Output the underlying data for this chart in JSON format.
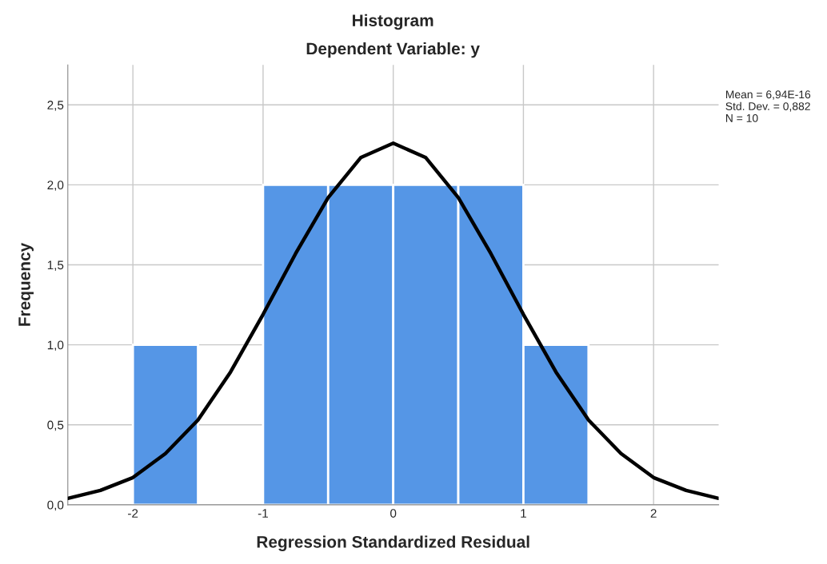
{
  "chart_data": {
    "type": "histogram",
    "title": "Histogram",
    "subtitle": "Dependent Variable: y",
    "xlabel": "Regression Standardized Residual",
    "ylabel": "Frequency",
    "bins": [
      -2,
      -1.5,
      -1,
      -0.5,
      0,
      0.5,
      1,
      1.5
    ],
    "values": [
      1,
      0,
      2,
      2,
      2,
      2,
      1
    ],
    "color": "#5596e6",
    "series": [
      {
        "type": "line",
        "color": "#000000",
        "x": [
          -2.5,
          -2.25,
          -2,
          -1.75,
          -1.5,
          -1.25,
          -1,
          -0.75,
          -0.5,
          -0.25,
          0,
          0.25,
          0.5,
          0.75,
          1,
          1.25,
          1.5,
          1.75,
          2,
          2.25,
          2.5
        ],
        "values": [
          0.04,
          0.09,
          0.17,
          0.32,
          0.53,
          0.83,
          1.19,
          1.57,
          1.92,
          2.17,
          2.26,
          2.17,
          1.92,
          1.57,
          1.19,
          0.83,
          0.53,
          0.32,
          0.17,
          0.09,
          0.04
        ]
      }
    ],
    "xlim": [
      -2.5,
      2.5
    ],
    "xticks": [
      -2,
      -1,
      0,
      1,
      2
    ],
    "ylim": [
      0,
      2.75
    ],
    "yticks": [
      {
        "value": 0,
        "label": "0,0"
      },
      {
        "value": 0.5,
        "label": "0,5"
      },
      {
        "value": 1,
        "label": "1,0"
      },
      {
        "value": 1.5,
        "label": "1,5"
      },
      {
        "value": 2,
        "label": "2,0"
      },
      {
        "value": 2.5,
        "label": "2,5"
      }
    ],
    "grid": true,
    "annotations": [
      "Mean = 6,94E-16",
      "Std. Dev. = 0,882",
      "N = 10"
    ]
  }
}
